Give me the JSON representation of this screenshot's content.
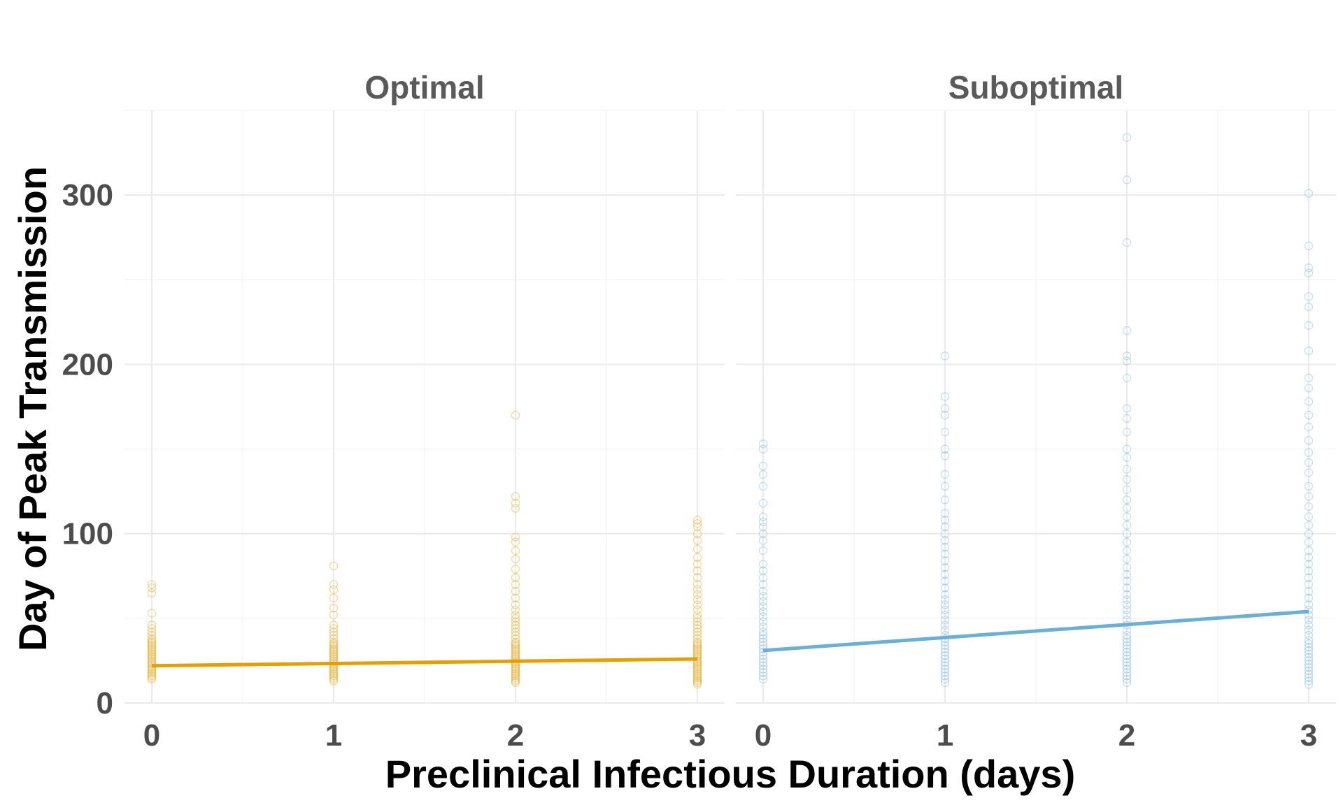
{
  "chart_data": {
    "type": "scatter",
    "facets": [
      {
        "label": "Optimal",
        "color": "#E69F00",
        "fit": {
          "x": [
            0,
            3
          ],
          "y": [
            22,
            26
          ]
        },
        "points": [
          {
            "x": 0,
            "y": [
              14,
              15,
              16,
              17,
              18,
              19,
              20,
              21,
              22,
              23,
              24,
              25,
              26,
              27,
              28,
              29,
              30,
              31,
              32,
              33,
              34,
              35,
              36,
              37,
              38,
              40,
              42,
              44,
              46,
              53,
              65,
              68,
              70
            ]
          },
          {
            "x": 1,
            "y": [
              13,
              14,
              15,
              16,
              17,
              18,
              19,
              20,
              21,
              22,
              23,
              24,
              25,
              26,
              27,
              28,
              29,
              30,
              31,
              32,
              33,
              34,
              35,
              36,
              38,
              40,
              42,
              44,
              46,
              52,
              56,
              62,
              67,
              70,
              81
            ]
          },
          {
            "x": 2,
            "y": [
              12,
              13,
              14,
              15,
              16,
              17,
              18,
              19,
              20,
              21,
              22,
              23,
              24,
              25,
              26,
              27,
              28,
              29,
              30,
              31,
              32,
              33,
              34,
              35,
              36,
              38,
              40,
              42,
              44,
              46,
              48,
              50,
              52,
              55,
              58,
              62,
              66,
              70,
              74,
              79,
              85,
              90,
              95,
              98,
              115,
              118,
              122,
              170
            ]
          },
          {
            "x": 3,
            "y": [
              11,
              12,
              13,
              14,
              15,
              16,
              17,
              18,
              19,
              20,
              21,
              22,
              23,
              24,
              25,
              26,
              27,
              28,
              29,
              30,
              31,
              32,
              33,
              34,
              35,
              36,
              38,
              40,
              42,
              44,
              46,
              48,
              50,
              52,
              55,
              58,
              61,
              64,
              67,
              70,
              74,
              78,
              82,
              86,
              91,
              96,
              100,
              104,
              106,
              108
            ]
          }
        ]
      },
      {
        "label": "Suboptimal",
        "color": "#6BAED6",
        "fit": {
          "x": [
            0,
            3
          ],
          "y": [
            31,
            54
          ]
        },
        "points": [
          {
            "x": 0,
            "y": [
              14,
              16,
              18,
              20,
              22,
              24,
              26,
              28,
              30,
              32,
              34,
              36,
              38,
              40,
              42,
              45,
              48,
              51,
              54,
              57,
              60,
              63,
              66,
              70,
              74,
              78,
              82,
              90,
              96,
              100,
              104,
              107,
              110,
              118,
              128,
              135,
              140,
              150,
              153
            ]
          },
          {
            "x": 1,
            "y": [
              12,
              14,
              16,
              18,
              20,
              22,
              24,
              26,
              28,
              30,
              32,
              34,
              36,
              38,
              40,
              43,
              46,
              49,
              52,
              55,
              58,
              61,
              64,
              68,
              72,
              76,
              80,
              84,
              88,
              92,
              96,
              100,
              104,
              108,
              112,
              120,
              128,
              135,
              146,
              150,
              160,
              170,
              174,
              181,
              205
            ]
          },
          {
            "x": 2,
            "y": [
              12,
              14,
              16,
              18,
              20,
              22,
              24,
              26,
              28,
              30,
              32,
              34,
              36,
              38,
              40,
              43,
              46,
              49,
              52,
              55,
              58,
              61,
              64,
              68,
              72,
              76,
              80,
              85,
              90,
              95,
              100,
              105,
              110,
              115,
              120,
              126,
              132,
              138,
              145,
              150,
              160,
              168,
              174,
              192,
              202,
              205,
              220,
              272,
              309,
              334
            ]
          },
          {
            "x": 3,
            "y": [
              11,
              13,
              15,
              17,
              19,
              21,
              23,
              25,
              27,
              29,
              31,
              33,
              35,
              37,
              40,
              43,
              46,
              49,
              52,
              55,
              58,
              62,
              66,
              70,
              74,
              78,
              82,
              86,
              90,
              95,
              100,
              105,
              110,
              116,
              122,
              128,
              136,
              142,
              148,
              155,
              163,
              170,
              178,
              186,
              192,
              208,
              223,
              234,
              240,
              254,
              257,
              270,
              301
            ]
          }
        ]
      }
    ],
    "xlabel": "Preclinical Infectious Duration (days)",
    "ylabel": "Day of Peak Transmission",
    "xticks": [
      "0",
      "1",
      "2",
      "3"
    ],
    "yticks": [
      "0",
      "100",
      "200",
      "300"
    ],
    "xlim": [
      -0.15,
      3.15
    ],
    "ylim": [
      0,
      350
    ],
    "grid": true,
    "legend": "none"
  }
}
